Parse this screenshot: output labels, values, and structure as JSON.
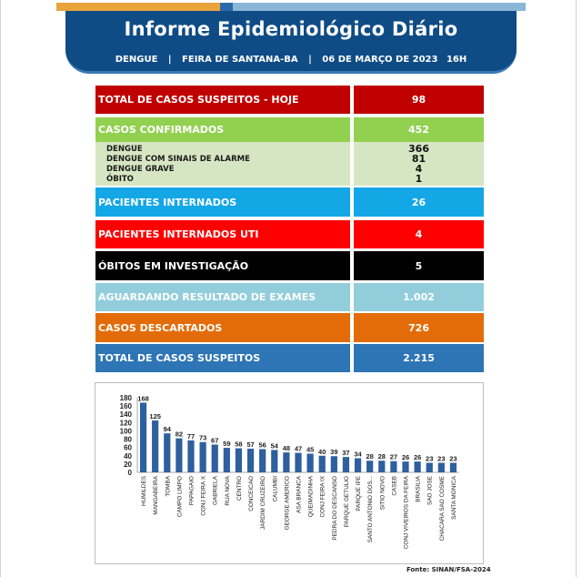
{
  "header": {
    "title": "Informe Epidemiológico Diário",
    "disease": "DENGUE",
    "city": "FEIRA DE SANTANA-BA",
    "date": "06 DE MARÇO DE 2023",
    "time": "16H",
    "separator": "|"
  },
  "rows": [
    {
      "label": "TOTAL DE CASOS SUSPEITOS - HOJE",
      "value": "98",
      "bg": "#c00000",
      "fg": "#ffffff"
    },
    {
      "label": "CASOS CONFIRMADOS",
      "value": "452",
      "bg": "#92d050",
      "fg": "#ffffff"
    },
    {
      "label": "PACIENTES INTERNADOS",
      "value": "26",
      "bg": "#14a7e6",
      "fg": "#ffffff"
    },
    {
      "label": "PACIENTES INTERNADOS UTI",
      "value": "4",
      "bg": "#ff0000",
      "fg": "#ffffff"
    },
    {
      "label": "ÓBITOS EM INVESTIGAÇÃO",
      "value": "5",
      "bg": "#000000",
      "fg": "#ffffff"
    },
    {
      "label": "AGUARDANDO RESULTADO DE EXAMES",
      "value": "1.002",
      "bg": "#92cddc",
      "fg": "#ffffff"
    },
    {
      "label": "CASOS DESCARTADOS",
      "value": "726",
      "bg": "#e36c09",
      "fg": "#ffffff"
    },
    {
      "label": "TOTAL DE CASOS SUSPEITOS",
      "value": "2.215",
      "bg": "#2e75b6",
      "fg": "#ffffff"
    }
  ],
  "confirmed_breakdown": [
    {
      "label": "DENGUE",
      "value": "366"
    },
    {
      "label": "DENGUE COM SINAIS DE ALARME",
      "value": "81"
    },
    {
      "label": "DENGUE GRAVE",
      "value": "4"
    },
    {
      "label": "ÓBITO",
      "value": "1"
    }
  ],
  "chart_data": {
    "type": "bar",
    "categories": [
      "HUMILDES",
      "MANGABEIRA",
      "TOMBA",
      "CAMPO LIMPO",
      "PAPAGAIO",
      "CONJ FEIRA X",
      "GABRIELA",
      "RUA NOVA",
      "CENTRO",
      "CONCEICAO",
      "JARDIM CRUZEIRO",
      "CALUMBI",
      "GEORGE AMERICO",
      "ASA BRANCA",
      "QUEIMADINHA",
      "CONJ FEIRA IX",
      "PEDRA DO DESCANSO",
      "PARQUE GETULIO",
      "PARQUE IPE",
      "SANTO ANTONIO DOS...",
      "SITIO NOVO",
      "CASEB",
      "CONJ VIVEIROS DA FEIRA",
      "BRASILIA",
      "SAO JOSE",
      "CHACARA SAO COSME",
      "SANTA MONICA"
    ],
    "values": [
      168,
      125,
      94,
      82,
      77,
      73,
      67,
      59,
      58,
      57,
      56,
      54,
      48,
      47,
      45,
      40,
      39,
      37,
      34,
      28,
      28,
      27,
      26,
      26,
      23,
      23,
      23
    ],
    "yticks": [
      0,
      20,
      40,
      60,
      80,
      100,
      120,
      140,
      160,
      180
    ],
    "ylim": [
      0,
      180
    ],
    "bar_color": "#2e5f9e",
    "grid": false,
    "title": "",
    "xlabel": "",
    "ylabel": ""
  },
  "footer": {
    "source": "Fonte: SINAN/FSA-2024"
  }
}
